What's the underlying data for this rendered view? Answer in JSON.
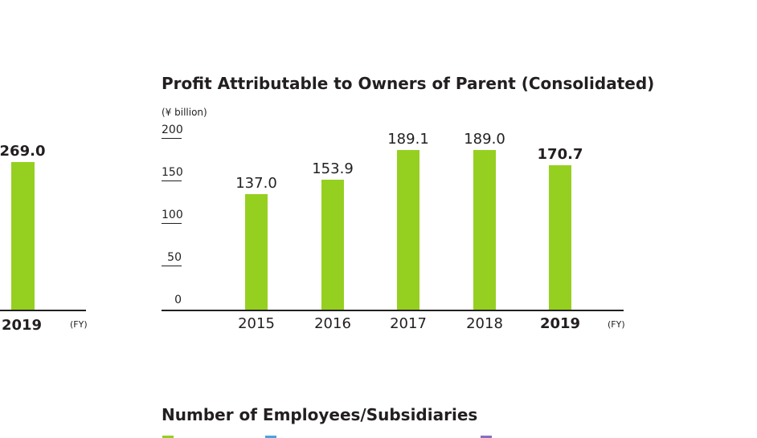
{
  "left_fragment": {
    "value_label": "269.0",
    "category_label": "2019",
    "fy_label": "(FY)",
    "value": 269.0
  },
  "chart_data": {
    "type": "bar",
    "title": "Profit Attributable to Owners of Parent (Consolidated)",
    "unit_label": "(¥ billion)",
    "categories": [
      "2015",
      "2016",
      "2017",
      "2018",
      "2019"
    ],
    "values": [
      137.0,
      153.9,
      189.1,
      189.0,
      170.7
    ],
    "value_labels": [
      "137.0",
      "153.9",
      "189.1",
      "189.0",
      "170.7"
    ],
    "highlight_index": 4,
    "yticks": [
      0,
      50,
      100,
      150,
      200
    ],
    "ylim": [
      0,
      200
    ],
    "xlabel": "(FY)",
    "grid": false,
    "bar_color": "#95d020"
  },
  "next_section": {
    "title": "Number of Employees/Subsidiaries",
    "legend_colors": [
      "#95d020",
      "#4aa3df",
      "#8a6fbf"
    ]
  }
}
